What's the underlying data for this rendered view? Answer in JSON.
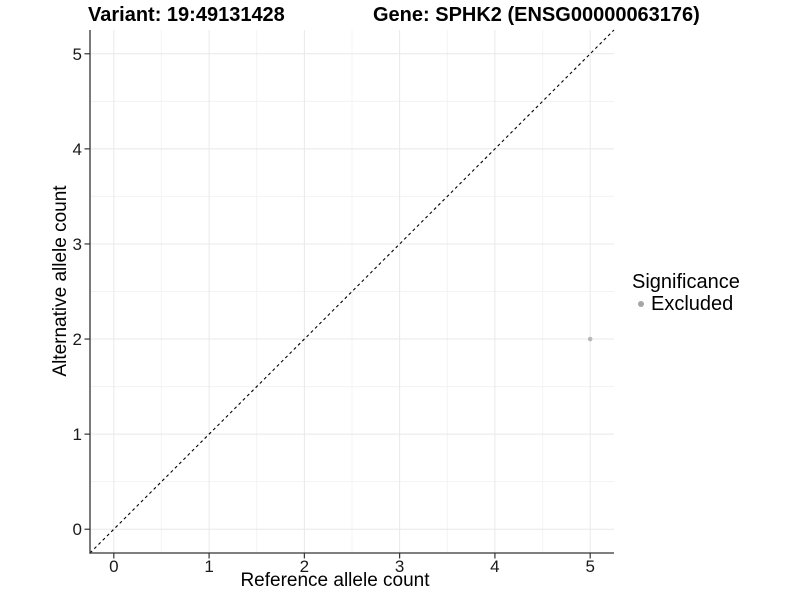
{
  "titles": {
    "variant": "Variant: 19:49131428",
    "gene": "Gene: SPHK2 (ENSG00000063176)"
  },
  "axes": {
    "x_label": "Reference allele count",
    "y_label": "Alternative allele count"
  },
  "legend": {
    "title": "Significance",
    "items": [
      {
        "label": "Excluded",
        "color": "#a6a6a6",
        "marker": "dot"
      }
    ]
  },
  "chart_data": {
    "type": "scatter",
    "title": "Variant: 19:49131428 | Gene: SPHK2 (ENSG00000063176)",
    "xlabel": "Reference allele count",
    "ylabel": "Alternative allele count",
    "xlim": [
      -0.25,
      5.25
    ],
    "ylim": [
      -0.25,
      5.25
    ],
    "x_ticks": [
      0,
      1,
      2,
      3,
      4,
      5
    ],
    "y_ticks": [
      0,
      1,
      2,
      3,
      4,
      5
    ],
    "x_minor": [
      0.5,
      1.5,
      2.5,
      3.5,
      4.5
    ],
    "y_minor": [
      0.5,
      1.5,
      2.5,
      3.5,
      4.5
    ],
    "grid": "major+minor",
    "legend_position": "right",
    "series": [
      {
        "name": "Excluded",
        "color": "#b8b8b8",
        "points": [
          {
            "x": 5,
            "y": 2
          }
        ]
      }
    ],
    "reference_line": {
      "kind": "identity",
      "from": [
        -0.25,
        -0.25
      ],
      "to": [
        5.25,
        5.25
      ],
      "style": "dashed",
      "color": "#000000"
    }
  },
  "style": {
    "background": "#ffffff",
    "axis_line_color": "#333333",
    "tick_color": "#333333",
    "tick_label_color": "#1a1a1a",
    "grid_major_color": "#e8e8e8",
    "grid_minor_color": "#f3f3f3",
    "point_radius": 2.3,
    "dash_pattern": "3,3"
  }
}
